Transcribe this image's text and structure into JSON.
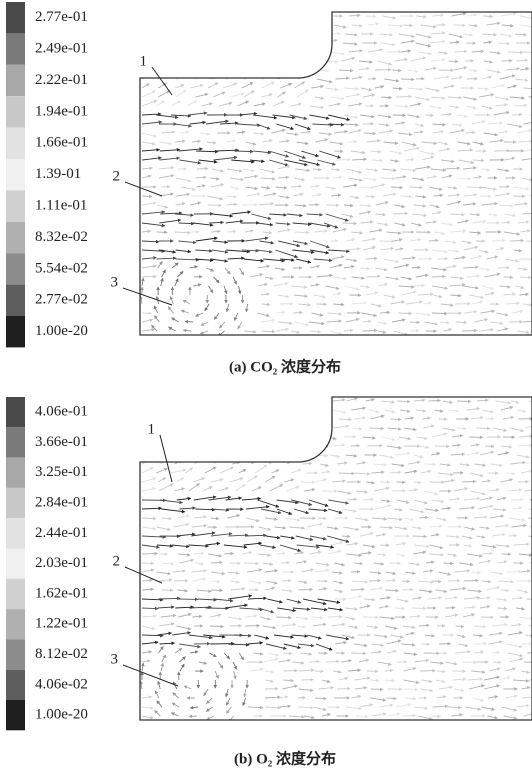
{
  "panels": [
    {
      "colorbar": {
        "labels": [
          "2.77e-01",
          "2.49e-01",
          "2.22e-01",
          "1.94e-01",
          "1.66e-01",
          "1.39-01",
          "1.11e-01",
          "8.32e-02",
          "5.54e-02",
          "2.77e-02",
          "1.00e-20"
        ]
      },
      "callouts": [
        "1",
        "2",
        "3"
      ],
      "caption": "(a) CO₂ 浓度分布"
    },
    {
      "colorbar": {
        "labels": [
          "4.06e-01",
          "3.66e-01",
          "3.25e-01",
          "2.84e-01",
          "2.44e-01",
          "2.03e-01",
          "1.62e-01",
          "1.22e-01",
          "8.12e-02",
          "4.06e-02",
          "1.00e-20"
        ]
      },
      "callouts": [
        "1",
        "2",
        "3"
      ],
      "caption": "(b) O₂ 浓度分布"
    }
  ]
}
